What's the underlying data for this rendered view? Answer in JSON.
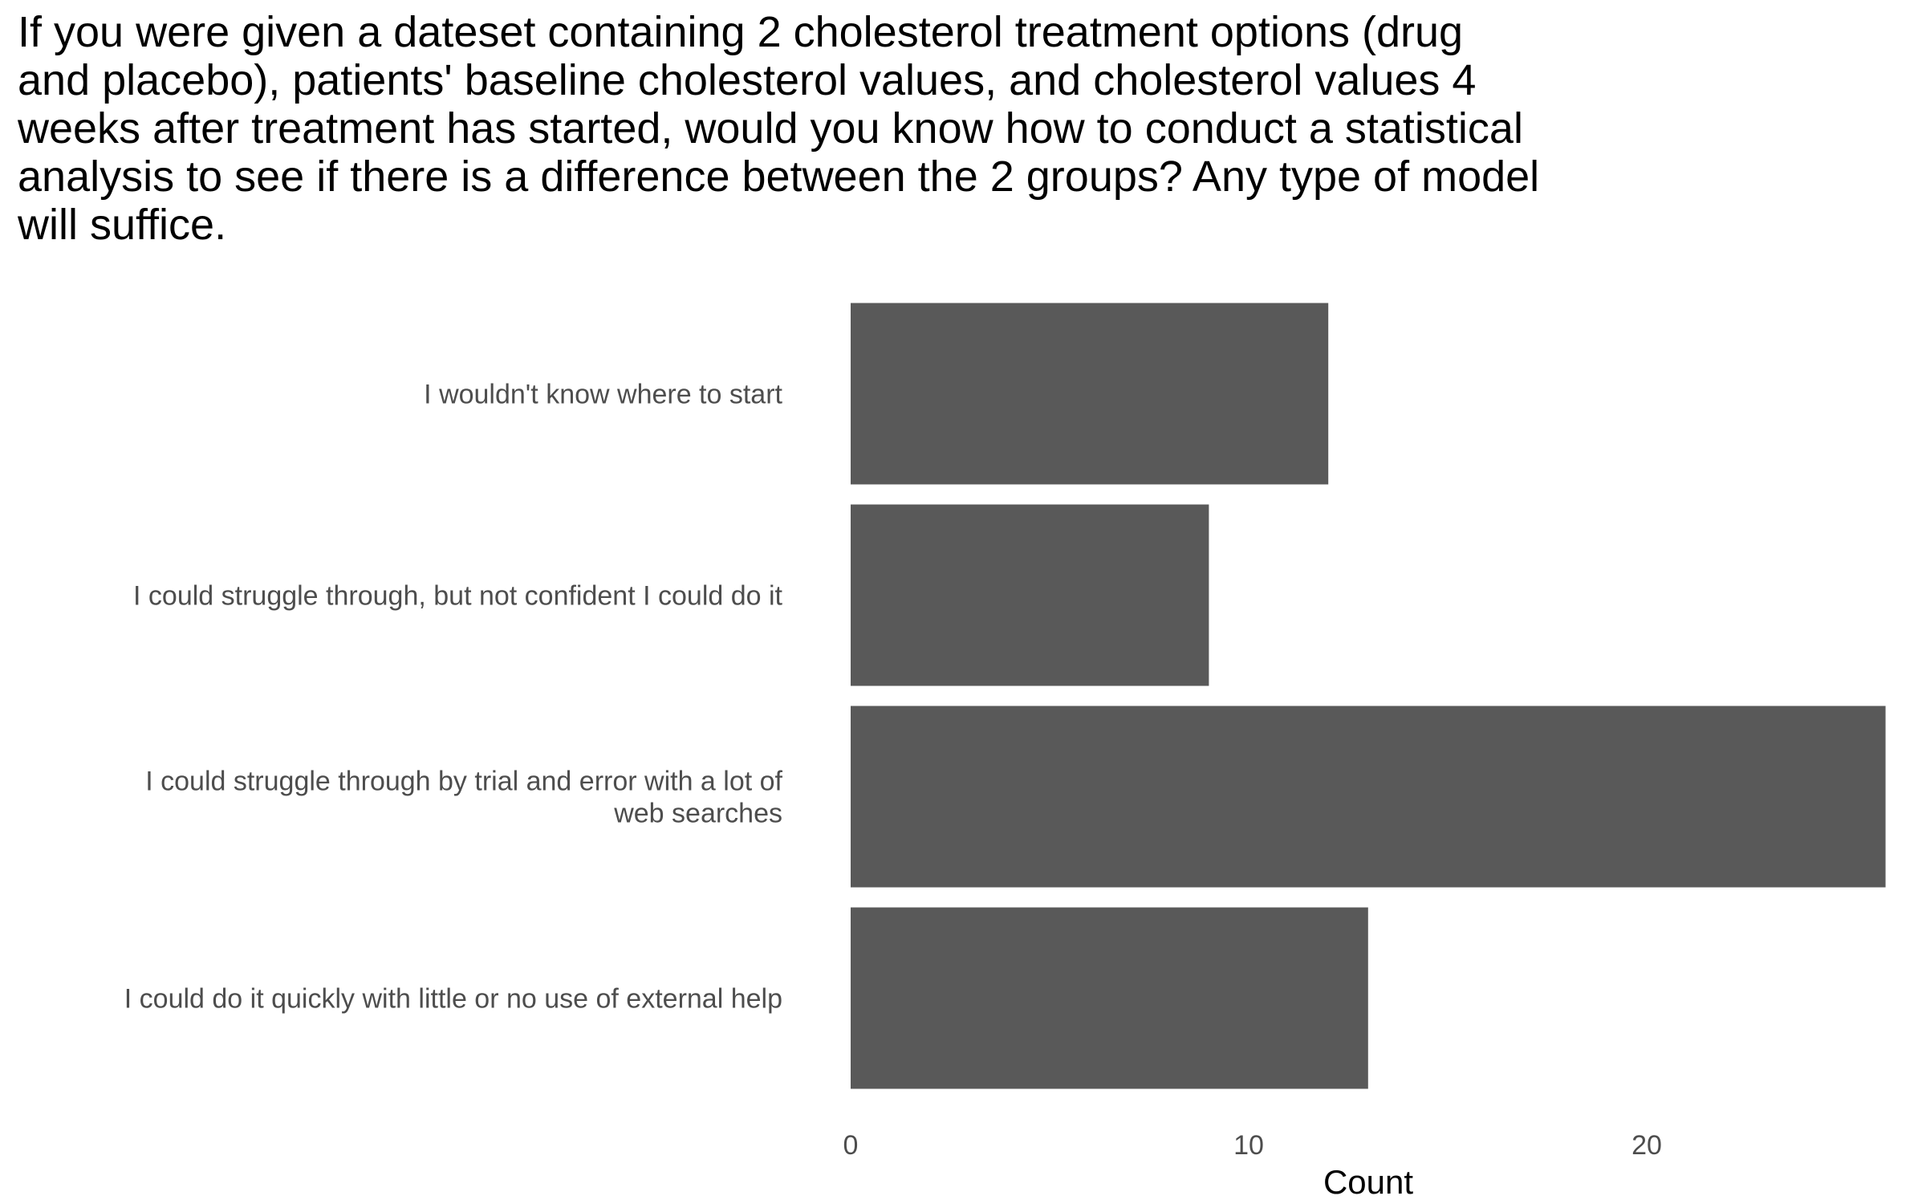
{
  "chart_data": {
    "type": "bar",
    "orientation": "horizontal",
    "title": "If you were given a dateset containing 2 cholesterol treatment options (drug\nand placebo), patients' baseline cholesterol values, and cholesterol values 4\nweeks after treatment has started, would you know how to conduct a statistical\nanalysis to see if there is a difference between the 2 groups? Any type of model\nwill suffice.",
    "categories": [
      "I wouldn't know where to start",
      "I could struggle through, but not confident I could do it",
      "I could struggle through by trial and error with a lot of\nweb searches",
      "I could do it quickly with little or no use of external help"
    ],
    "values": [
      12,
      9,
      26,
      13
    ],
    "xlabel": "Count",
    "ylabel": "",
    "xlim": [
      0,
      26
    ],
    "x_ticks": [
      0,
      10,
      20
    ],
    "bar_color": "#595959",
    "grid": false,
    "legend": "none"
  }
}
